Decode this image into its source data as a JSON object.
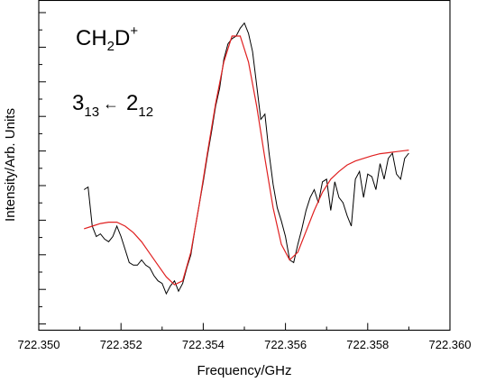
{
  "chart_data": {
    "type": "line",
    "title": "",
    "xlabel": "Frequency/GHz",
    "ylabel": "Intensity/Arb. Units",
    "xlim": [
      722.35,
      722.36
    ],
    "ylim": [
      0,
      1
    ],
    "x_ticks": [
      "722.350",
      "722.352",
      "722.354",
      "722.356",
      "722.358",
      "722.360"
    ],
    "y_tick_labels_shown": false,
    "grid": false,
    "legend": "none",
    "annotations": {
      "molecule": {
        "base": "CH",
        "sub1": "2",
        "mid": "D",
        "sup": "+"
      },
      "transition": {
        "upper": "3",
        "upper_sub": "13",
        "lower": "2",
        "lower_sub": "12",
        "arrow": "←"
      }
    },
    "series": [
      {
        "style": "noisy",
        "color": "#000000",
        "x": [
          722.3511,
          722.3512,
          722.3513,
          722.3514,
          722.3515,
          722.3516,
          722.3517,
          722.3518,
          722.3519,
          722.352,
          722.3521,
          722.3522,
          722.3523,
          722.3524,
          722.3525,
          722.3526,
          722.3527,
          722.3528,
          722.3529,
          722.353,
          722.3531,
          722.3532,
          722.3533,
          722.3534,
          722.3535,
          722.3536,
          722.3537,
          722.3538,
          722.3539,
          722.354,
          722.3541,
          722.3542,
          722.3543,
          722.3544,
          722.3545,
          722.3546,
          722.3547,
          722.3548,
          722.3549,
          722.355,
          722.3551,
          722.3552,
          722.3553,
          722.3554,
          722.3555,
          722.3556,
          722.3557,
          722.3558,
          722.3559,
          722.356,
          722.3561,
          722.3562,
          722.3563,
          722.3564,
          722.3565,
          722.3566,
          722.3567,
          722.3568,
          722.3569,
          722.357,
          722.3571,
          722.3572,
          722.3573,
          722.3574,
          722.3575,
          722.3576,
          722.3577,
          722.3578,
          722.3579,
          722.358,
          722.3581,
          722.3582,
          722.3583,
          722.3584,
          722.3585,
          722.3586,
          722.3587,
          722.3588,
          722.3589,
          722.359
        ],
        "y": [
          0.41,
          0.42,
          0.27,
          0.23,
          0.24,
          0.22,
          0.21,
          0.23,
          0.27,
          0.23,
          0.18,
          0.13,
          0.12,
          0.12,
          0.14,
          0.12,
          0.11,
          0.08,
          0.06,
          0.05,
          0.01,
          0.04,
          0.06,
          0.02,
          0.05,
          0.11,
          0.16,
          0.26,
          0.35,
          0.44,
          0.54,
          0.63,
          0.73,
          0.8,
          0.91,
          0.97,
          0.99,
          1.0,
          1.03,
          1.05,
          1.01,
          0.94,
          0.81,
          0.68,
          0.7,
          0.55,
          0.43,
          0.34,
          0.29,
          0.23,
          0.14,
          0.13,
          0.2,
          0.26,
          0.33,
          0.38,
          0.41,
          0.36,
          0.44,
          0.45,
          0.33,
          0.44,
          0.38,
          0.36,
          0.31,
          0.27,
          0.45,
          0.48,
          0.38,
          0.47,
          0.46,
          0.41,
          0.51,
          0.45,
          0.53,
          0.55,
          0.47,
          0.45,
          0.53,
          0.55
        ]
      },
      {
        "style": "fit",
        "color": "#e02020",
        "x": [
          722.3511,
          722.3513,
          722.3515,
          722.3517,
          722.3519,
          722.3521,
          722.3523,
          722.3525,
          722.3527,
          722.3529,
          722.3531,
          722.3533,
          722.3535,
          722.3537,
          722.3539,
          722.3541,
          722.3543,
          722.3545,
          722.3547,
          722.3549,
          722.3551,
          722.3553,
          722.3555,
          722.3557,
          722.3559,
          722.3561,
          722.3563,
          722.3565,
          722.3567,
          722.3569,
          722.3571,
          722.3573,
          722.3575,
          722.3577,
          722.3579,
          722.3581,
          722.3583,
          722.3585,
          722.3587,
          722.3589,
          722.359
        ],
        "y": [
          0.26,
          0.27,
          0.28,
          0.285,
          0.285,
          0.27,
          0.245,
          0.21,
          0.165,
          0.12,
          0.075,
          0.045,
          0.06,
          0.17,
          0.35,
          0.55,
          0.74,
          0.9,
          1.0,
          1.0,
          0.9,
          0.73,
          0.53,
          0.34,
          0.2,
          0.14,
          0.17,
          0.25,
          0.33,
          0.4,
          0.45,
          0.48,
          0.505,
          0.52,
          0.53,
          0.54,
          0.548,
          0.552,
          0.556,
          0.56,
          0.562
        ]
      }
    ]
  }
}
